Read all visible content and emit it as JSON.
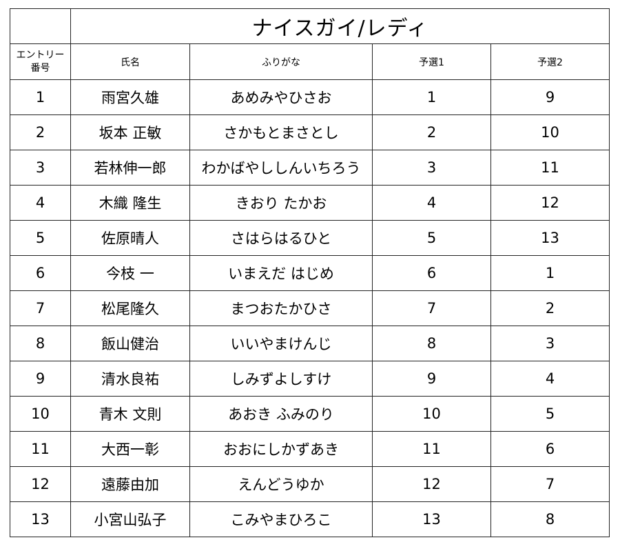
{
  "title": "ナイスガイ/レディ",
  "headers": {
    "entry_line1": "エントリー",
    "entry_line2": "番号",
    "name": "氏名",
    "furigana": "ふりがな",
    "prelim1": "予選1",
    "prelim2": "予選2"
  },
  "rows": [
    {
      "no": "1",
      "name": "雨宮久雄",
      "furigana": "あめみやひさお",
      "p1": "1",
      "p2": "9"
    },
    {
      "no": "2",
      "name": "坂本 正敏",
      "furigana": "さかもとまさとし",
      "p1": "2",
      "p2": "10"
    },
    {
      "no": "3",
      "name": "若林伸一郎",
      "furigana": "わかばやししんいちろう",
      "p1": "3",
      "p2": "11"
    },
    {
      "no": "4",
      "name": "木織 隆生",
      "furigana": "きおり たかお",
      "p1": "4",
      "p2": "12"
    },
    {
      "no": "5",
      "name": "佐原晴人",
      "furigana": "さはらはるひと",
      "p1": "5",
      "p2": "13"
    },
    {
      "no": "6",
      "name": "今枝 一",
      "furigana": "いまえだ はじめ",
      "p1": "6",
      "p2": "1"
    },
    {
      "no": "7",
      "name": "松尾隆久",
      "furigana": "まつおたかひさ",
      "p1": "7",
      "p2": "2"
    },
    {
      "no": "8",
      "name": "飯山健治",
      "furigana": "いいやまけんじ",
      "p1": "8",
      "p2": "3"
    },
    {
      "no": "9",
      "name": "清水良祐",
      "furigana": "しみずよしすけ",
      "p1": "9",
      "p2": "4"
    },
    {
      "no": "10",
      "name": "青木 文則",
      "furigana": "あおき ふみのり",
      "p1": "10",
      "p2": "5"
    },
    {
      "no": "11",
      "name": "大西一彰",
      "furigana": "おおにしかずあき",
      "p1": "11",
      "p2": "6"
    },
    {
      "no": "12",
      "name": "遠藤由加",
      "furigana": "えんどうゆか",
      "p1": "12",
      "p2": "7"
    },
    {
      "no": "13",
      "name": "小宮山弘子",
      "furigana": "こみやまひろこ",
      "p1": "13",
      "p2": "8"
    }
  ]
}
